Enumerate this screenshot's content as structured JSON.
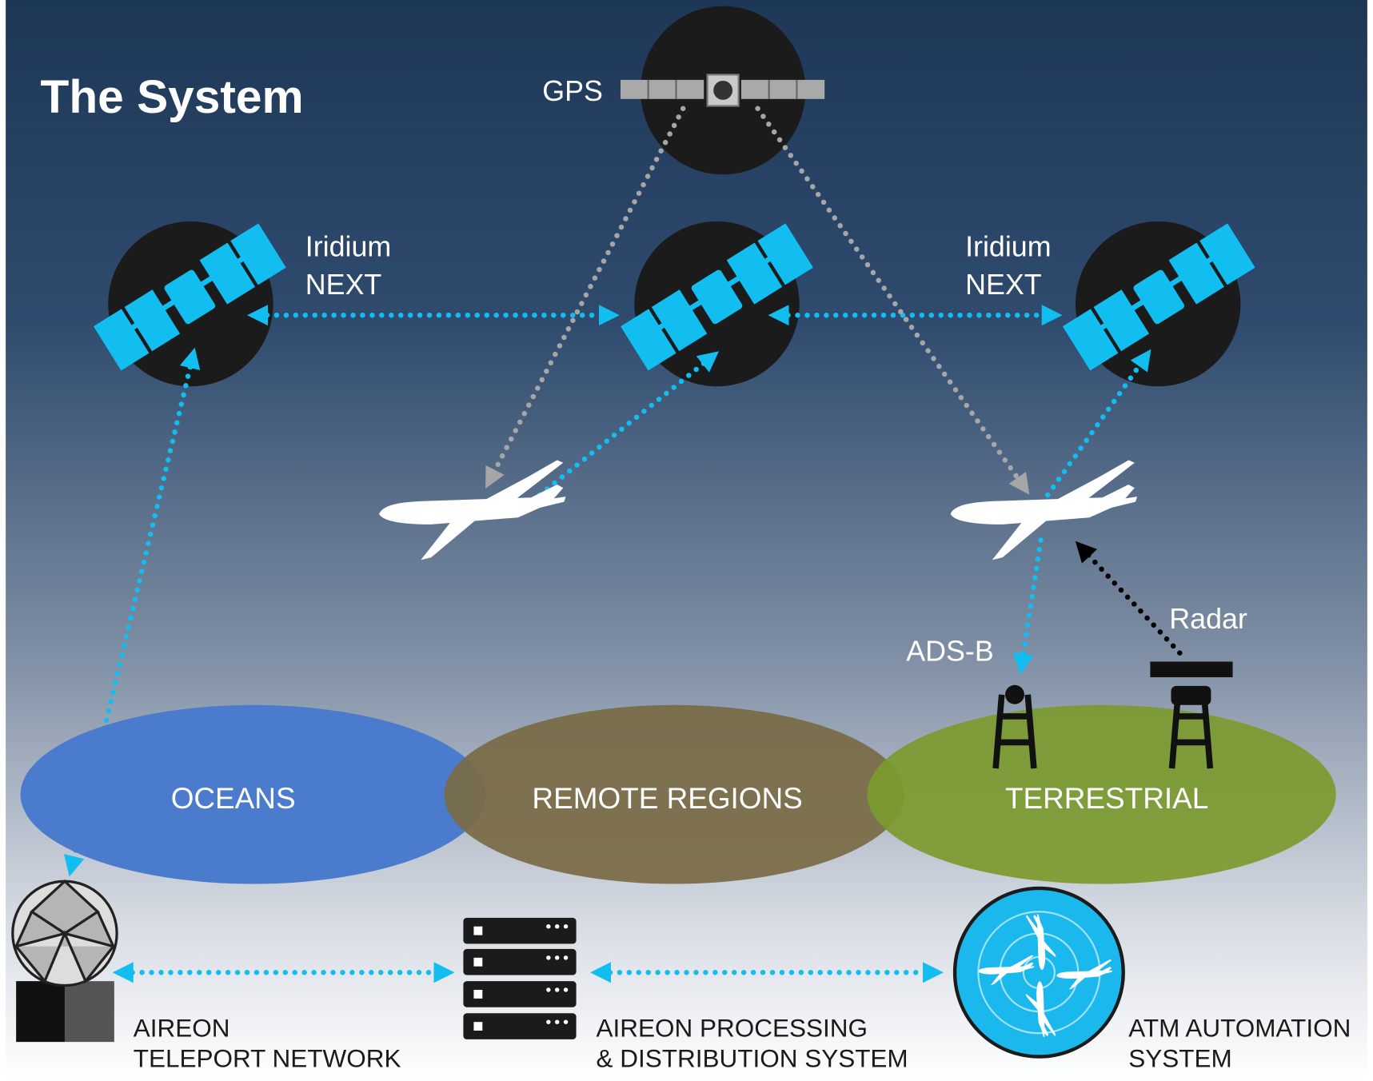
{
  "header": {
    "title": "The System"
  },
  "satellites": {
    "gps": "GPS",
    "iridium": [
      [
        "Iridium",
        "NEXT"
      ],
      [
        "Iridium",
        "NEXT"
      ]
    ]
  },
  "links": {
    "adsb": "ADS-B",
    "radar": "Radar"
  },
  "regions": [
    "OCEANS",
    "REMOTE REGIONS",
    "TERRESTRIAL"
  ],
  "systems": [
    [
      "AIREON",
      "TELEPORT NETWORK"
    ],
    [
      "AIREON PROCESSING",
      "& DISTRIBUTION SYSTEM"
    ],
    [
      "ATM AUTOMATION",
      "SYSTEM"
    ]
  ]
}
